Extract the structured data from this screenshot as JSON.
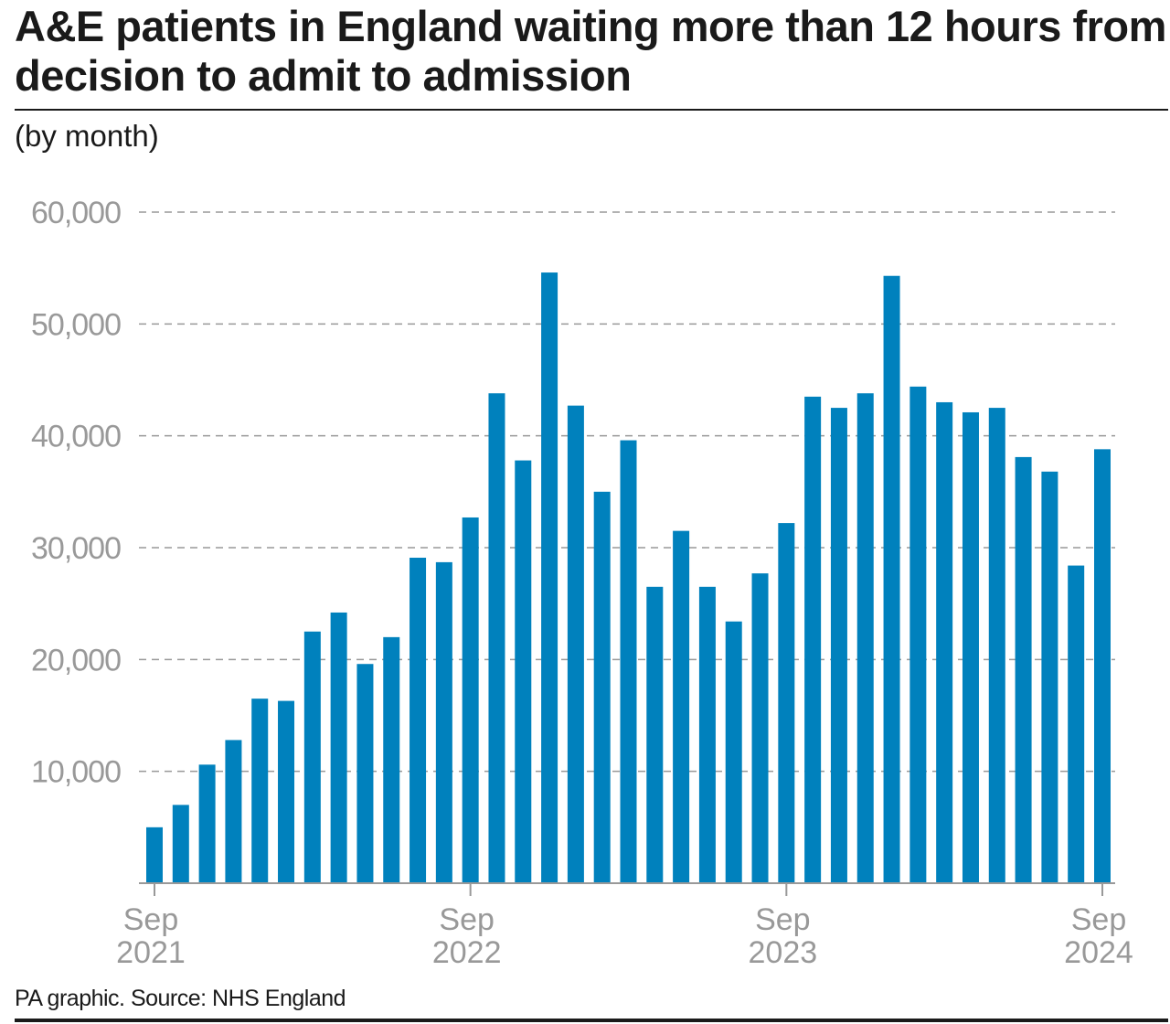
{
  "chart_data": {
    "type": "bar",
    "title": "A&E patients in England waiting more than 12 hours from decision to admit to admission",
    "subtitle": "(by month)",
    "source": "PA graphic. Source: NHS England",
    "xlabel": "",
    "ylabel": "",
    "ylim": [
      0,
      60000
    ],
    "yticks": [
      10000,
      20000,
      30000,
      40000,
      50000,
      60000
    ],
    "ytick_labels": [
      "10,000",
      "20,000",
      "30,000",
      "40,000",
      "50,000",
      "60,000"
    ],
    "grid": true,
    "bar_color": "#0081bd",
    "categories": [
      "Sep 2021",
      "Oct 2021",
      "Nov 2021",
      "Dec 2021",
      "Jan 2022",
      "Feb 2022",
      "Mar 2022",
      "Apr 2022",
      "May 2022",
      "Jun 2022",
      "Jul 2022",
      "Aug 2022",
      "Sep 2022",
      "Oct 2022",
      "Nov 2022",
      "Dec 2022",
      "Jan 2023",
      "Feb 2023",
      "Mar 2023",
      "Apr 2023",
      "May 2023",
      "Jun 2023",
      "Jul 2023",
      "Aug 2023",
      "Sep 2023",
      "Oct 2023",
      "Nov 2023",
      "Dec 2023",
      "Jan 2024",
      "Feb 2024",
      "Mar 2024",
      "Apr 2024",
      "May 2024",
      "Jun 2024",
      "Jul 2024",
      "Aug 2024",
      "Sep 2024"
    ],
    "values": [
      5000,
      7000,
      10600,
      12800,
      16500,
      16300,
      22500,
      24200,
      19600,
      22000,
      29100,
      28700,
      32700,
      43800,
      37800,
      54600,
      42700,
      35000,
      39600,
      26500,
      31500,
      26500,
      23400,
      27700,
      32200,
      43500,
      42500,
      43800,
      54300,
      44400,
      43000,
      42100,
      42500,
      38100,
      36800,
      28400,
      38800
    ],
    "xtick_labels": [
      {
        "index": 0,
        "month": "Sep",
        "year": "2021"
      },
      {
        "index": 12,
        "month": "Sep",
        "year": "2022"
      },
      {
        "index": 24,
        "month": "Sep",
        "year": "2023"
      },
      {
        "index": 36,
        "month": "Sep",
        "year": "2024"
      }
    ]
  }
}
